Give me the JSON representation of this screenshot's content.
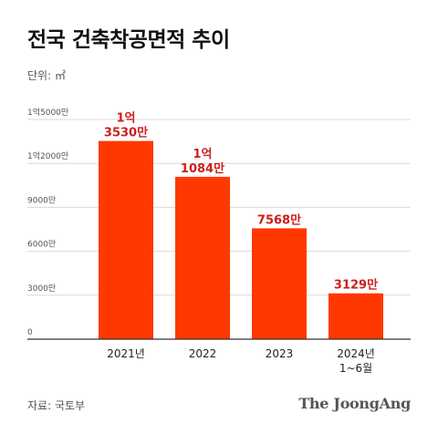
{
  "title": "전국 건축착공면적 추이",
  "unit": "단위: ㎡",
  "source": "자료: 국토부",
  "logo": "The JoongAng",
  "colors": {
    "bar": "#ff3800",
    "data_label": "#cc1f1a",
    "grid": "#d9d9d9",
    "axis": "#333333"
  },
  "chart_data": {
    "type": "bar",
    "categories": [
      [
        "2021년"
      ],
      [
        "2022"
      ],
      [
        "2023"
      ],
      [
        "2024년",
        "1~6월"
      ]
    ],
    "values": [
      135300000,
      110840000,
      75680000,
      31290000
    ],
    "data_labels": [
      [
        "1억",
        "3530만"
      ],
      [
        "1억",
        "1084만"
      ],
      [
        "7568만"
      ],
      [
        "3129만"
      ]
    ],
    "y_ticks": [
      0,
      30000000,
      60000000,
      90000000,
      120000000,
      150000000
    ],
    "y_tick_labels": [
      "0",
      "3000만",
      "6000만",
      "9000만",
      "1억2000만",
      "1억5000만"
    ],
    "ylim": [
      0,
      150000000
    ],
    "grid": true,
    "legend": "none"
  }
}
